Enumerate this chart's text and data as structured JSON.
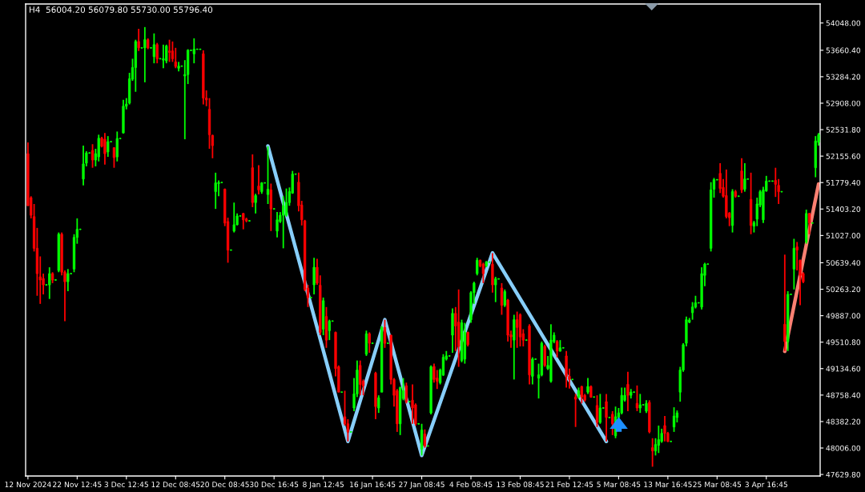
{
  "chart_data": {
    "type": "candlestick",
    "title": "H4  56004.20 56079.80 55730.00 55796.40",
    "categories": [
      "12 Nov 2024",
      null,
      null,
      null,
      null,
      null,
      null,
      null,
      null,
      null,
      null,
      null,
      null,
      null,
      null,
      null,
      "22 Nov 12:45",
      null,
      null,
      null,
      null,
      null,
      null,
      null,
      null,
      null,
      null,
      null,
      null,
      null,
      null,
      null,
      "3 Dec 12:45",
      null,
      null,
      null,
      null,
      null,
      null,
      null,
      null,
      null,
      null,
      null,
      null,
      null,
      null,
      null,
      "12 Dec 08:45",
      null,
      null,
      null,
      null,
      null,
      null,
      null,
      null,
      null,
      null,
      null,
      null,
      null,
      null,
      null,
      "20 Dec 08:45",
      null,
      null,
      null,
      null,
      null,
      null,
      null,
      null,
      null,
      null,
      null,
      null,
      null,
      null,
      null,
      "30 Dec 16:45",
      null,
      null,
      null,
      null,
      null,
      null,
      null,
      null,
      null,
      null,
      null,
      null,
      null,
      null,
      null,
      "8 Jan 12:45",
      null,
      null,
      null,
      null,
      null,
      null,
      null,
      null,
      null,
      null,
      null,
      null,
      null,
      null,
      null,
      "16 Jan 16:45",
      null,
      null,
      null,
      null,
      null,
      null,
      null,
      null,
      null,
      null,
      null,
      null,
      null,
      null,
      null,
      "27 Jan 08:45",
      null,
      null,
      null,
      null,
      null,
      null,
      null,
      null,
      null,
      null,
      null,
      null,
      null,
      null,
      null,
      "4 Feb 08:45",
      null,
      null,
      null,
      null,
      null,
      null,
      null,
      null,
      null,
      null,
      null,
      null,
      null,
      null,
      null,
      "13 Feb 08:45",
      null,
      null,
      null,
      null,
      null,
      null,
      null,
      null,
      null,
      null,
      null,
      null,
      null,
      null,
      null,
      "21 Feb 12:45",
      null,
      null,
      null,
      null,
      null,
      null,
      null,
      null,
      null,
      null,
      null,
      null,
      null,
      null,
      null,
      "5 Mar 08:45",
      null,
      null,
      null,
      null,
      null,
      null,
      null,
      null,
      null,
      null,
      null,
      null,
      null,
      null,
      null,
      "13 Mar 16:45",
      null,
      null,
      null,
      null,
      null,
      null,
      null,
      null,
      null,
      null,
      null,
      null,
      null,
      null,
      null,
      "25 Mar 08:45",
      null,
      null,
      null,
      null,
      null,
      null,
      null,
      null,
      null,
      null,
      null,
      null,
      null,
      null,
      null,
      "3 Apr 16:45",
      null,
      null,
      null,
      null,
      null,
      null,
      null,
      null,
      null,
      null,
      null,
      null,
      null,
      null,
      null,
      null,
      null
    ],
    "ohlc": [
      [
        52190,
        52350,
        51450,
        51450
      ],
      [
        51565,
        51585,
        51270,
        51315
      ],
      [
        51295,
        51475,
        50800,
        50845
      ],
      [
        50845,
        51135,
        50170,
        50485
      ],
      [
        50440,
        50730,
        50055,
        50395
      ],
      [
        50415,
        50485,
        50190,
        50325
      ],
      [
        50325,
        50335,
        50315,
        50325
      ],
      [
        50325,
        50575,
        50125,
        50485
      ],
      [
        50485,
        50505,
        50350,
        50395
      ],
      [
        50395,
        50405,
        50385,
        50395
      ],
      [
        50530,
        51070,
        50505,
        51045
      ],
      [
        51045,
        51070,
        50460,
        50505
      ],
      [
        50505,
        50530,
        49810,
        50370
      ],
      [
        50370,
        50550,
        50235,
        50485
      ],
      [
        50485,
        50495,
        50475,
        50485
      ],
      [
        50550,
        51045,
        50505,
        51000
      ],
      [
        51000,
        51270,
        50910,
        51115
      ],
      [
        51115,
        51125,
        51105,
        51115
      ],
      [
        51830,
        52305,
        51740,
        52045
      ],
      [
        52055,
        52225,
        52010,
        52200
      ],
      [
        52200,
        52210,
        52190,
        52200
      ],
      [
        52235,
        52325,
        51990,
        52100
      ],
      [
        52100,
        52260,
        52010,
        52190
      ],
      [
        52145,
        52460,
        52080,
        52410
      ],
      [
        52410,
        52430,
        52280,
        52295
      ],
      [
        52395,
        52485,
        52035,
        52190
      ],
      [
        52215,
        52440,
        52145,
        52360
      ],
      [
        52360,
        52370,
        52350,
        52360
      ],
      [
        52275,
        52280,
        51990,
        52135
      ],
      [
        52145,
        52505,
        52080,
        52405
      ],
      [
        52405,
        52415,
        52395,
        52405
      ],
      [
        52485,
        52955,
        52475,
        52865
      ],
      [
        52865,
        52980,
        52820,
        52895
      ],
      [
        52910,
        53340,
        52890,
        53255
      ],
      [
        53250,
        53540,
        53225,
        53415
      ],
      [
        53415,
        53810,
        53070,
        53785
      ],
      [
        53785,
        53965,
        53650,
        53695
      ],
      [
        53695,
        53705,
        53685,
        53695
      ],
      [
        53695,
        53990,
        53205,
        53810
      ],
      [
        53810,
        53830,
        53675,
        53695
      ],
      [
        53695,
        53705,
        53685,
        53695
      ],
      [
        53570,
        53900,
        53475,
        53740
      ],
      [
        53740,
        53765,
        53475,
        53540
      ],
      [
        53540,
        53550,
        53530,
        53540
      ],
      [
        53520,
        53740,
        53405,
        53540
      ],
      [
        53510,
        53740,
        53475,
        53720
      ],
      [
        53650,
        53810,
        53495,
        53630
      ],
      [
        53650,
        53785,
        53495,
        53540
      ],
      [
        53495,
        53695,
        53405,
        53430
      ],
      [
        53405,
        53495,
        53360,
        53435
      ],
      [
        53435,
        53445,
        53425,
        53435
      ],
      [
        53295,
        53520,
        52395,
        53315
      ],
      [
        53315,
        53675,
        53180,
        53660
      ],
      [
        53660,
        53670,
        53650,
        53660
      ],
      [
        53610,
        53830,
        53475,
        53675
      ],
      [
        53675,
        53685,
        53665,
        53675
      ],
      [
        53675,
        53685,
        53665,
        53675
      ],
      [
        53610,
        53660,
        52890,
        52980
      ],
      [
        52980,
        53090,
        52865,
        52955
      ],
      [
        52820,
        52980,
        52260,
        52460
      ],
      [
        52450,
        52460,
        52125,
        52305
      ],
      [
        51650,
        51920,
        51405,
        51775
      ],
      [
        51765,
        51810,
        51585,
        51780
      ],
      [
        51780,
        51790,
        51770,
        51780
      ],
      [
        51685,
        51695,
        51160,
        51205
      ],
      [
        51225,
        51280,
        50640,
        50820
      ],
      [
        50820,
        50830,
        50810,
        50820
      ],
      [
        51090,
        51495,
        51070,
        51180
      ],
      [
        51180,
        51340,
        51170,
        51305
      ],
      [
        51305,
        51315,
        51295,
        51305
      ],
      [
        51340,
        51350,
        51115,
        51250
      ],
      [
        51260,
        51280,
        51215,
        51235
      ],
      [
        51235,
        51245,
        51225,
        51235
      ],
      [
        51990,
        52180,
        51430,
        51495
      ],
      [
        51495,
        51620,
        51340,
        51595
      ],
      [
        51730,
        52025,
        51610,
        51675
      ],
      [
        51650,
        51785,
        51620,
        51775
      ],
      [
        51775,
        51785,
        51765,
        51775
      ],
      [
        51610,
        52295,
        51475,
        51685
      ],
      [
        51675,
        51765,
        51090,
        51405
      ],
      [
        51405,
        51415,
        51395,
        51405
      ],
      [
        51090,
        51360,
        51000,
        51250
      ],
      [
        51225,
        51360,
        51205,
        51315
      ],
      [
        51315,
        51585,
        50845,
        51450
      ],
      [
        51315,
        51695,
        51295,
        51495
      ],
      [
        51495,
        51710,
        51450,
        51650
      ],
      [
        51630,
        51945,
        51620,
        51900
      ],
      [
        51900,
        51910,
        51890,
        51900
      ],
      [
        51785,
        51920,
        51370,
        51450
      ],
      [
        51460,
        51520,
        51170,
        51250
      ],
      [
        51235,
        51250,
        50235,
        50260
      ],
      [
        50280,
        50325,
        50010,
        50145
      ],
      [
        50145,
        50155,
        50135,
        50145
      ],
      [
        50325,
        50710,
        50190,
        50575
      ],
      [
        50575,
        50695,
        50325,
        50350
      ],
      [
        50320,
        50460,
        49610,
        49650
      ],
      [
        49695,
        50145,
        49610,
        50100
      ],
      [
        49875,
        50010,
        49430,
        49540
      ],
      [
        49675,
        49830,
        49540,
        49810
      ],
      [
        49810,
        49820,
        49800,
        49810
      ],
      [
        49650,
        49660,
        49025,
        49135
      ],
      [
        49160,
        49180,
        48800,
        48800
      ],
      [
        48800,
        48810,
        48790,
        48800
      ],
      [
        48450,
        48820,
        48325,
        48350
      ],
      [
        48350,
        48415,
        48100,
        48235
      ],
      [
        48235,
        48245,
        48225,
        48235
      ],
      [
        48575,
        49000,
        48530,
        48775
      ],
      [
        48775,
        49250,
        48730,
        49115
      ],
      [
        49180,
        49250,
        48755,
        48910
      ],
      [
        48955,
        48980,
        48755,
        48890
      ],
      [
        49340,
        49675,
        49315,
        49630
      ],
      [
        49630,
        49650,
        49360,
        49495
      ],
      [
        49495,
        49505,
        49485,
        49495
      ],
      [
        49070,
        49090,
        48415,
        48595
      ],
      [
        48575,
        48755,
        48505,
        48720
      ],
      [
        48800,
        49740,
        48800,
        49720
      ],
      [
        49720,
        49830,
        49430,
        49495
      ],
      [
        49495,
        49505,
        49485,
        49495
      ],
      [
        49610,
        49615,
        48910,
        48980
      ],
      [
        48980,
        49000,
        48595,
        48755
      ],
      [
        48820,
        48845,
        48235,
        48350
      ],
      [
        48350,
        48880,
        48190,
        48865
      ],
      [
        48710,
        49000,
        48685,
        48820
      ],
      [
        48890,
        48935,
        48640,
        48665
      ],
      [
        48665,
        48675,
        48655,
        48665
      ],
      [
        48685,
        48910,
        48350,
        48575
      ],
      [
        48620,
        48640,
        48325,
        48350
      ],
      [
        48350,
        48360,
        48340,
        48350
      ],
      [
        47990,
        48350,
        47900,
        48260
      ],
      [
        48205,
        48270,
        48010,
        48035
      ],
      [
        48035,
        48045,
        48025,
        48035
      ],
      [
        48505,
        49180,
        48485,
        49160
      ],
      [
        49165,
        49205,
        48935,
        48980
      ],
      [
        49000,
        49115,
        48845,
        48955
      ],
      [
        48935,
        49135,
        48910,
        49115
      ],
      [
        49045,
        49340,
        49030,
        49295
      ],
      [
        49270,
        49385,
        49250,
        49315
      ],
      [
        49315,
        49325,
        49305,
        49315
      ],
      [
        49610,
        49990,
        49360,
        49920
      ],
      [
        49920,
        50010,
        49385,
        49740
      ],
      [
        49795,
        50260,
        49160,
        49450
      ],
      [
        49250,
        49830,
        49225,
        49785
      ],
      [
        49270,
        49785,
        49205,
        49650
      ],
      [
        49650,
        49660,
        49450,
        49475
      ],
      [
        49830,
        50235,
        49785,
        50215
      ],
      [
        50215,
        50370,
        50055,
        50350
      ],
      [
        50485,
        50710,
        50460,
        50675
      ],
      [
        50675,
        50685,
        50575,
        50595
      ],
      [
        50620,
        50640,
        50350,
        50485
      ],
      [
        50595,
        50665,
        50575,
        50650
      ],
      [
        50650,
        50660,
        50640,
        50650
      ],
      [
        50620,
        50775,
        50215,
        50325
      ],
      [
        50325,
        50440,
        50080,
        50410
      ],
      [
        50410,
        50420,
        50400,
        50410
      ],
      [
        50280,
        50350,
        49900,
        50035
      ],
      [
        50035,
        50260,
        50010,
        50230
      ],
      [
        50110,
        50125,
        49520,
        49610
      ],
      [
        49615,
        49675,
        49430,
        49585
      ],
      [
        49540,
        49900,
        48980,
        49830
      ],
      [
        49830,
        49945,
        49430,
        49720
      ],
      [
        49900,
        49920,
        49450,
        49585
      ],
      [
        49630,
        49695,
        49450,
        49540
      ],
      [
        49540,
        49550,
        49530,
        49540
      ],
      [
        49740,
        49765,
        48910,
        49045
      ],
      [
        49025,
        49295,
        48910,
        49270
      ],
      [
        49270,
        49280,
        49260,
        49270
      ],
      [
        49000,
        49205,
        48710,
        49045
      ],
      [
        49045,
        49520,
        49025,
        49495
      ],
      [
        49450,
        49475,
        49160,
        49180
      ],
      [
        49135,
        49315,
        49115,
        49180
      ],
      [
        48955,
        49765,
        48935,
        49540
      ],
      [
        49520,
        49650,
        49495,
        49610
      ],
      [
        49520,
        49540,
        49295,
        49385
      ],
      [
        49385,
        49540,
        49375,
        49430
      ],
      [
        49430,
        49440,
        49420,
        49430
      ],
      [
        49315,
        49385,
        48865,
        49025
      ],
      [
        49025,
        49135,
        48850,
        48980
      ],
      [
        48980,
        48990,
        48970,
        48980
      ],
      [
        48730,
        48775,
        48305,
        48700
      ],
      [
        48730,
        48865,
        48710,
        48820
      ],
      [
        48880,
        48890,
        48640,
        48730
      ],
      [
        48755,
        48775,
        48665,
        48685
      ],
      [
        48800,
        49000,
        48775,
        48880
      ],
      [
        48880,
        48895,
        48720,
        48730
      ],
      [
        48730,
        48740,
        48720,
        48730
      ],
      [
        48610,
        48755,
        48305,
        48370
      ],
      [
        48370,
        48775,
        48350,
        48575
      ],
      [
        48575,
        48585,
        48565,
        48575
      ],
      [
        48665,
        48775,
        48100,
        48440
      ],
      [
        48440,
        48450,
        48430,
        48440
      ],
      [
        48485,
        48530,
        48190,
        48350
      ],
      [
        48180,
        48595,
        48145,
        48450
      ],
      [
        48440,
        48575,
        48415,
        48505
      ],
      [
        48505,
        48865,
        48485,
        48755
      ],
      [
        48685,
        48865,
        48665,
        48755
      ],
      [
        48910,
        49090,
        48530,
        48755
      ],
      [
        48755,
        48845,
        48710,
        48800
      ],
      [
        48800,
        48810,
        48790,
        48800
      ],
      [
        48640,
        48895,
        48530,
        48575
      ],
      [
        48575,
        48775,
        48505,
        48620
      ],
      [
        48620,
        48630,
        48610,
        48620
      ],
      [
        48530,
        48685,
        48505,
        48640
      ],
      [
        48655,
        48685,
        48215,
        48235
      ],
      [
        48010,
        48145,
        47740,
        47965
      ],
      [
        47965,
        48145,
        47900,
        48055
      ],
      [
        48045,
        48325,
        47935,
        48125
      ],
      [
        48100,
        48280,
        48080,
        48215
      ],
      [
        48325,
        48460,
        48100,
        48215
      ],
      [
        48215,
        48235,
        48090,
        48100
      ],
      [
        48100,
        48110,
        48090,
        48100
      ],
      [
        48305,
        48585,
        48235,
        48460
      ],
      [
        48440,
        48540,
        48370,
        48505
      ],
      [
        48800,
        49160,
        48665,
        49115
      ],
      [
        49115,
        49495,
        49090,
        49475
      ],
      [
        49495,
        49875,
        49450,
        49830
      ],
      [
        49795,
        49855,
        49780,
        49825
      ],
      [
        49930,
        50080,
        49830,
        50010
      ],
      [
        50010,
        50170,
        49990,
        50070
      ],
      [
        50070,
        50080,
        50060,
        50070
      ],
      [
        50010,
        50575,
        49975,
        50485
      ],
      [
        50460,
        50640,
        50305,
        50620
      ],
      [
        50620,
        50630,
        50610,
        50620
      ],
      [
        50845,
        51785,
        50800,
        51675
      ],
      [
        51685,
        51845,
        51565,
        51820
      ],
      [
        51820,
        51830,
        51810,
        51820
      ],
      [
        51910,
        52055,
        51630,
        51695
      ],
      [
        51710,
        51830,
        51565,
        51585
      ],
      [
        51595,
        51965,
        51270,
        51295
      ],
      [
        51345,
        51360,
        51160,
        51280
      ],
      [
        51170,
        51685,
        51070,
        51650
      ],
      [
        51650,
        51675,
        51565,
        51585
      ],
      [
        51585,
        51595,
        51575,
        51585
      ],
      [
        51945,
        52125,
        51630,
        51675
      ],
      [
        51685,
        52055,
        51650,
        51830
      ],
      [
        51830,
        51840,
        51820,
        51830
      ],
      [
        51540,
        51920,
        51045,
        51170
      ],
      [
        51160,
        51235,
        51070,
        51210
      ],
      [
        51260,
        51565,
        51160,
        51475
      ],
      [
        51460,
        51675,
        51430,
        51650
      ],
      [
        51250,
        51720,
        51205,
        51675
      ],
      [
        51660,
        51875,
        51650,
        51800
      ],
      [
        51800,
        51810,
        51790,
        51800
      ],
      [
        51800,
        51810,
        51790,
        51800
      ],
      [
        51810,
        51990,
        51575,
        51755
      ],
      [
        51740,
        51830,
        51475,
        51650
      ],
      [
        51650,
        51660,
        51640,
        51650
      ],
      [
        49765,
        50755,
        49385,
        49520
      ],
      [
        49520,
        50235,
        49385,
        50190
      ],
      [
        50190,
        50200,
        50180,
        50190
      ],
      [
        50550,
        50980,
        50260,
        50845
      ],
      [
        50865,
        50935,
        50530,
        50820
      ],
      [
        50675,
        50685,
        50035,
        50460
      ],
      [
        50485,
        50505,
        50350,
        50370
      ],
      [
        50935,
        51395,
        50910,
        51340
      ],
      [
        51340,
        51350,
        51045,
        51205
      ],
      [
        51205,
        51215,
        51195,
        51205
      ],
      [
        51990,
        52440,
        51855,
        52370
      ],
      [
        52350,
        52485,
        52305,
        52460
      ]
    ],
    "colors": [
      "#ff0000",
      "#ff0000",
      "#ff0000",
      "#ff0000",
      "#ff0000",
      "#ff0000",
      "#00ff00",
      "#00ff00",
      "#ff0000",
      "#00ff00",
      "#00ff00",
      "#ff0000",
      "#ff0000",
      "#00ff00",
      "#00ff00",
      "#00ff00",
      "#00ff00",
      "#00ff00",
      "#00ff00",
      "#00ff00",
      "#00ff00",
      "#ff0000",
      "#00ff00",
      "#00ff00",
      "#ff0000",
      "#ff0000",
      "#00ff00",
      "#00ff00",
      "#ff0000",
      "#00ff00",
      "#00ff00",
      "#00ff00",
      "#00ff00",
      "#00ff00",
      "#00ff00",
      "#00ff00",
      "#ff0000",
      "#00ff00",
      "#00ff00",
      "#ff0000",
      "#00ff00",
      "#00ff00",
      "#ff0000",
      "#00ff00",
      "#00ff00",
      "#00ff00",
      "#ff0000",
      "#ff0000",
      "#ff0000",
      "#00ff00",
      "#00ff00",
      "#00ff00",
      "#00ff00",
      "#00ff00",
      "#00ff00",
      "#00ff00",
      "#00ff00",
      "#ff0000",
      "#ff0000",
      "#ff0000",
      "#ff0000",
      "#00ff00",
      "#00ff00",
      "#00ff00",
      "#ff0000",
      "#ff0000",
      "#00ff00",
      "#00ff00",
      "#00ff00",
      "#00ff00",
      "#ff0000",
      "#ff0000",
      "#00ff00",
      "#ff0000",
      "#00ff00",
      "#ff0000",
      "#00ff00",
      "#00ff00",
      "#00ff00",
      "#ff0000",
      "#00ff00",
      "#00ff00",
      "#00ff00",
      "#00ff00",
      "#00ff00",
      "#00ff00",
      "#00ff00",
      "#00ff00",
      "#ff0000",
      "#ff0000",
      "#ff0000",
      "#ff0000",
      "#00ff00",
      "#00ff00",
      "#ff0000",
      "#ff0000",
      "#00ff00",
      "#ff0000",
      "#00ff00",
      "#00ff00",
      "#ff0000",
      "#ff0000",
      "#00ff00",
      "#ff0000",
      "#ff0000",
      "#00ff00",
      "#00ff00",
      "#00ff00",
      "#ff0000",
      "#ff0000",
      "#00ff00",
      "#ff0000",
      "#00ff00",
      "#ff0000",
      "#00ff00",
      "#00ff00",
      "#ff0000",
      "#00ff00",
      "#ff0000",
      "#ff0000",
      "#ff0000",
      "#00ff00",
      "#00ff00",
      "#ff0000",
      "#00ff00",
      "#ff0000",
      "#ff0000",
      "#00ff00",
      "#00ff00",
      "#ff0000",
      "#00ff00",
      "#00ff00",
      "#ff0000",
      "#ff0000",
      "#00ff00",
      "#00ff00",
      "#00ff00",
      "#00ff00",
      "#00ff00",
      "#ff0000",
      "#ff0000",
      "#00ff00",
      "#00ff00",
      "#ff0000",
      "#00ff00",
      "#00ff00",
      "#00ff00",
      "#ff0000",
      "#ff0000",
      "#00ff00",
      "#00ff00",
      "#ff0000",
      "#00ff00",
      "#00ff00",
      "#ff0000",
      "#00ff00",
      "#ff0000",
      "#ff0000",
      "#00ff00",
      "#ff0000",
      "#ff0000",
      "#ff0000",
      "#00ff00",
      "#ff0000",
      "#00ff00",
      "#00ff00",
      "#00ff00",
      "#00ff00",
      "#ff0000",
      "#00ff00",
      "#00ff00",
      "#00ff00",
      "#ff0000",
      "#00ff00",
      "#00ff00",
      "#ff0000",
      "#ff0000",
      "#00ff00",
      "#ff0000",
      "#00ff00",
      "#ff0000",
      "#ff0000",
      "#00ff00",
      "#ff0000",
      "#00ff00",
      "#ff0000",
      "#00ff00",
      "#00ff00",
      "#ff0000",
      "#00ff00",
      "#ff0000",
      "#00ff00",
      "#00ff00",
      "#00ff00",
      "#00ff00",
      "#ff0000",
      "#00ff00",
      "#00ff00",
      "#ff0000",
      "#00ff00",
      "#00ff00",
      "#00ff00",
      "#ff0000",
      "#ff0000",
      "#00ff00",
      "#00ff00",
      "#00ff00",
      "#ff0000",
      "#ff0000",
      "#00ff00",
      "#00ff00",
      "#00ff00",
      "#00ff00",
      "#00ff00",
      "#00ff00",
      "#00ff00",
      "#00ff00",
      "#00ff00",
      "#00ff00",
      "#00ff00",
      "#00ff00",
      "#00ff00",
      "#00ff00",
      "#00ff00",
      "#00ff00",
      "#ff0000",
      "#ff0000",
      "#ff0000",
      "#ff0000",
      "#00ff00",
      "#ff0000",
      "#00ff00",
      "#ff0000",
      "#00ff00",
      "#00ff00",
      "#ff0000",
      "#00ff00",
      "#00ff00",
      "#00ff00",
      "#00ff00",
      "#00ff00",
      "#00ff00",
      "#00ff00",
      "#ff0000",
      "#ff0000",
      "#00ff00",
      "#ff0000",
      "#00ff00",
      "#00ff00",
      "#00ff00",
      "#ff0000",
      "#ff0000",
      "#ff0000",
      "#00ff00",
      "#ff0000",
      "#00ff00",
      "#00ff00",
      "#00ff00"
    ],
    "series": [
      {
        "type": "line",
        "color": "#87cefa",
        "values": [
          null,
          null,
          null,
          null,
          null,
          null,
          null,
          null,
          null,
          null,
          null,
          null,
          null,
          null,
          null,
          null,
          null,
          null,
          null,
          null,
          null,
          null,
          null,
          null,
          null,
          null,
          null,
          null,
          null,
          null,
          null,
          null,
          null,
          null,
          null,
          null,
          null,
          null,
          null,
          null,
          null,
          null,
          null,
          null,
          null,
          null,
          null,
          null,
          null,
          null,
          null,
          null,
          null,
          null,
          null,
          null,
          null,
          null,
          null,
          null,
          null,
          null,
          null,
          null,
          null,
          null,
          null,
          null,
          null,
          null,
          null,
          null,
          null,
          null,
          null,
          null,
          null,
          null,
          52300,
          null,
          null,
          null,
          null,
          null,
          null,
          null,
          null,
          null,
          null,
          null,
          null,
          null,
          null,
          null,
          null,
          null,
          null,
          null,
          null,
          null,
          null,
          null,
          null,
          null,
          48100,
          null,
          null,
          null,
          null,
          null,
          null,
          null,
          null,
          null,
          null,
          null,
          49830,
          null,
          null,
          null,
          null,
          null,
          null,
          null,
          null,
          null,
          null,
          null,
          47900,
          null,
          null,
          null,
          null,
          null,
          null,
          null,
          null,
          null,
          null,
          null,
          null,
          null,
          null,
          null,
          null,
          null,
          null,
          null,
          null,
          null,
          null,
          50780,
          null,
          null,
          null,
          null,
          null,
          null,
          null,
          null,
          null,
          null,
          null,
          null,
          null,
          null,
          null,
          null,
          null,
          null,
          null,
          null,
          null,
          null,
          null,
          null,
          null,
          null,
          null,
          null,
          null,
          null,
          null,
          null,
          null,
          null,
          null,
          null,
          48100,
          null,
          null,
          null,
          null,
          null,
          null,
          null,
          null,
          null,
          null,
          null,
          null,
          null,
          null,
          null,
          null,
          null,
          null,
          null,
          null,
          null,
          null,
          null,
          null,
          null,
          null,
          null,
          null,
          null,
          null,
          null,
          null,
          null,
          null,
          null,
          null,
          null,
          null,
          null,
          null,
          null,
          null,
          null,
          null,
          null,
          null,
          null,
          null,
          null,
          null,
          null,
          null,
          null,
          null,
          null,
          null,
          null,
          null,
          null,
          null,
          null,
          null,
          null,
          null,
          null,
          null,
          null,
          null,
          null
        ]
      },
      {
        "type": "line",
        "color": "#fa8072",
        "values": [
          null,
          null,
          null,
          null,
          null,
          null,
          null,
          null,
          null,
          null,
          null,
          null,
          null,
          null,
          null,
          null,
          null,
          null,
          null,
          null,
          null,
          null,
          null,
          null,
          null,
          null,
          null,
          null,
          null,
          null,
          null,
          null,
          null,
          null,
          null,
          null,
          null,
          null,
          null,
          null,
          null,
          null,
          null,
          null,
          null,
          null,
          null,
          null,
          null,
          null,
          null,
          null,
          null,
          null,
          null,
          null,
          null,
          null,
          null,
          null,
          null,
          null,
          null,
          null,
          null,
          null,
          null,
          null,
          null,
          null,
          null,
          null,
          null,
          null,
          null,
          null,
          null,
          null,
          null,
          null,
          null,
          null,
          null,
          null,
          null,
          null,
          null,
          null,
          null,
          null,
          null,
          null,
          null,
          null,
          null,
          null,
          null,
          null,
          null,
          null,
          null,
          null,
          null,
          null,
          null,
          null,
          null,
          null,
          null,
          null,
          null,
          null,
          null,
          null,
          null,
          null,
          null,
          null,
          null,
          null,
          null,
          null,
          null,
          null,
          null,
          null,
          null,
          null,
          null,
          null,
          null,
          null,
          null,
          null,
          null,
          null,
          null,
          null,
          null,
          null,
          null,
          null,
          null,
          null,
          null,
          null,
          null,
          null,
          null,
          null,
          null,
          null,
          null,
          null,
          null,
          null,
          null,
          null,
          null,
          null,
          null,
          null,
          null,
          null,
          null,
          null,
          null,
          null,
          null,
          null,
          null,
          null,
          null,
          null,
          null,
          null,
          null,
          null,
          null,
          null,
          null,
          null,
          null,
          null,
          null,
          null,
          null,
          null,
          null,
          null,
          null,
          null,
          null,
          null,
          null,
          null,
          null,
          null,
          null,
          null,
          null,
          null,
          null,
          null,
          null,
          null,
          null,
          null,
          null,
          null,
          null,
          null,
          null,
          null,
          null,
          null,
          null,
          null,
          null,
          null,
          null,
          null,
          null,
          null,
          null,
          null,
          null,
          null,
          null,
          null,
          null,
          null,
          null,
          null,
          null,
          null,
          null,
          null,
          null,
          null,
          null,
          null,
          null,
          null,
          null,
          null,
          49380,
          null,
          null,
          null,
          null,
          null,
          null,
          null,
          null,
          null,
          null,
          51760
        ]
      }
    ],
    "ylim": [
      47608,
      54318
    ],
    "yticks": [
      {
        "value": 47629.8,
        "label": "47629.80"
      },
      {
        "value": 48006,
        "label": "48006.00"
      },
      {
        "value": 48382.2,
        "label": "48382.20"
      },
      {
        "value": 48758.4,
        "label": "48758.40"
      },
      {
        "value": 49134.6,
        "label": "49134.60"
      },
      {
        "value": 49510.8,
        "label": "49510.80"
      },
      {
        "value": 49887,
        "label": "49887.00"
      },
      {
        "value": 50263.2,
        "label": "50263.20"
      },
      {
        "value": 50639.4,
        "label": "50639.40"
      },
      {
        "value": 51027,
        "label": "51027.00"
      },
      {
        "value": 51403.2,
        "label": "51403.20"
      },
      {
        "value": 51779.4,
        "label": "51779.40"
      },
      {
        "value": 52155.6,
        "label": "52155.60"
      },
      {
        "value": 52531.8,
        "label": "52531.80"
      },
      {
        "value": 52908,
        "label": "52908.00"
      },
      {
        "value": 53284.2,
        "label": "53284.20"
      },
      {
        "value": 53660.4,
        "label": "53660.40"
      },
      {
        "value": 54048,
        "label": "54048.00"
      }
    ]
  }
}
